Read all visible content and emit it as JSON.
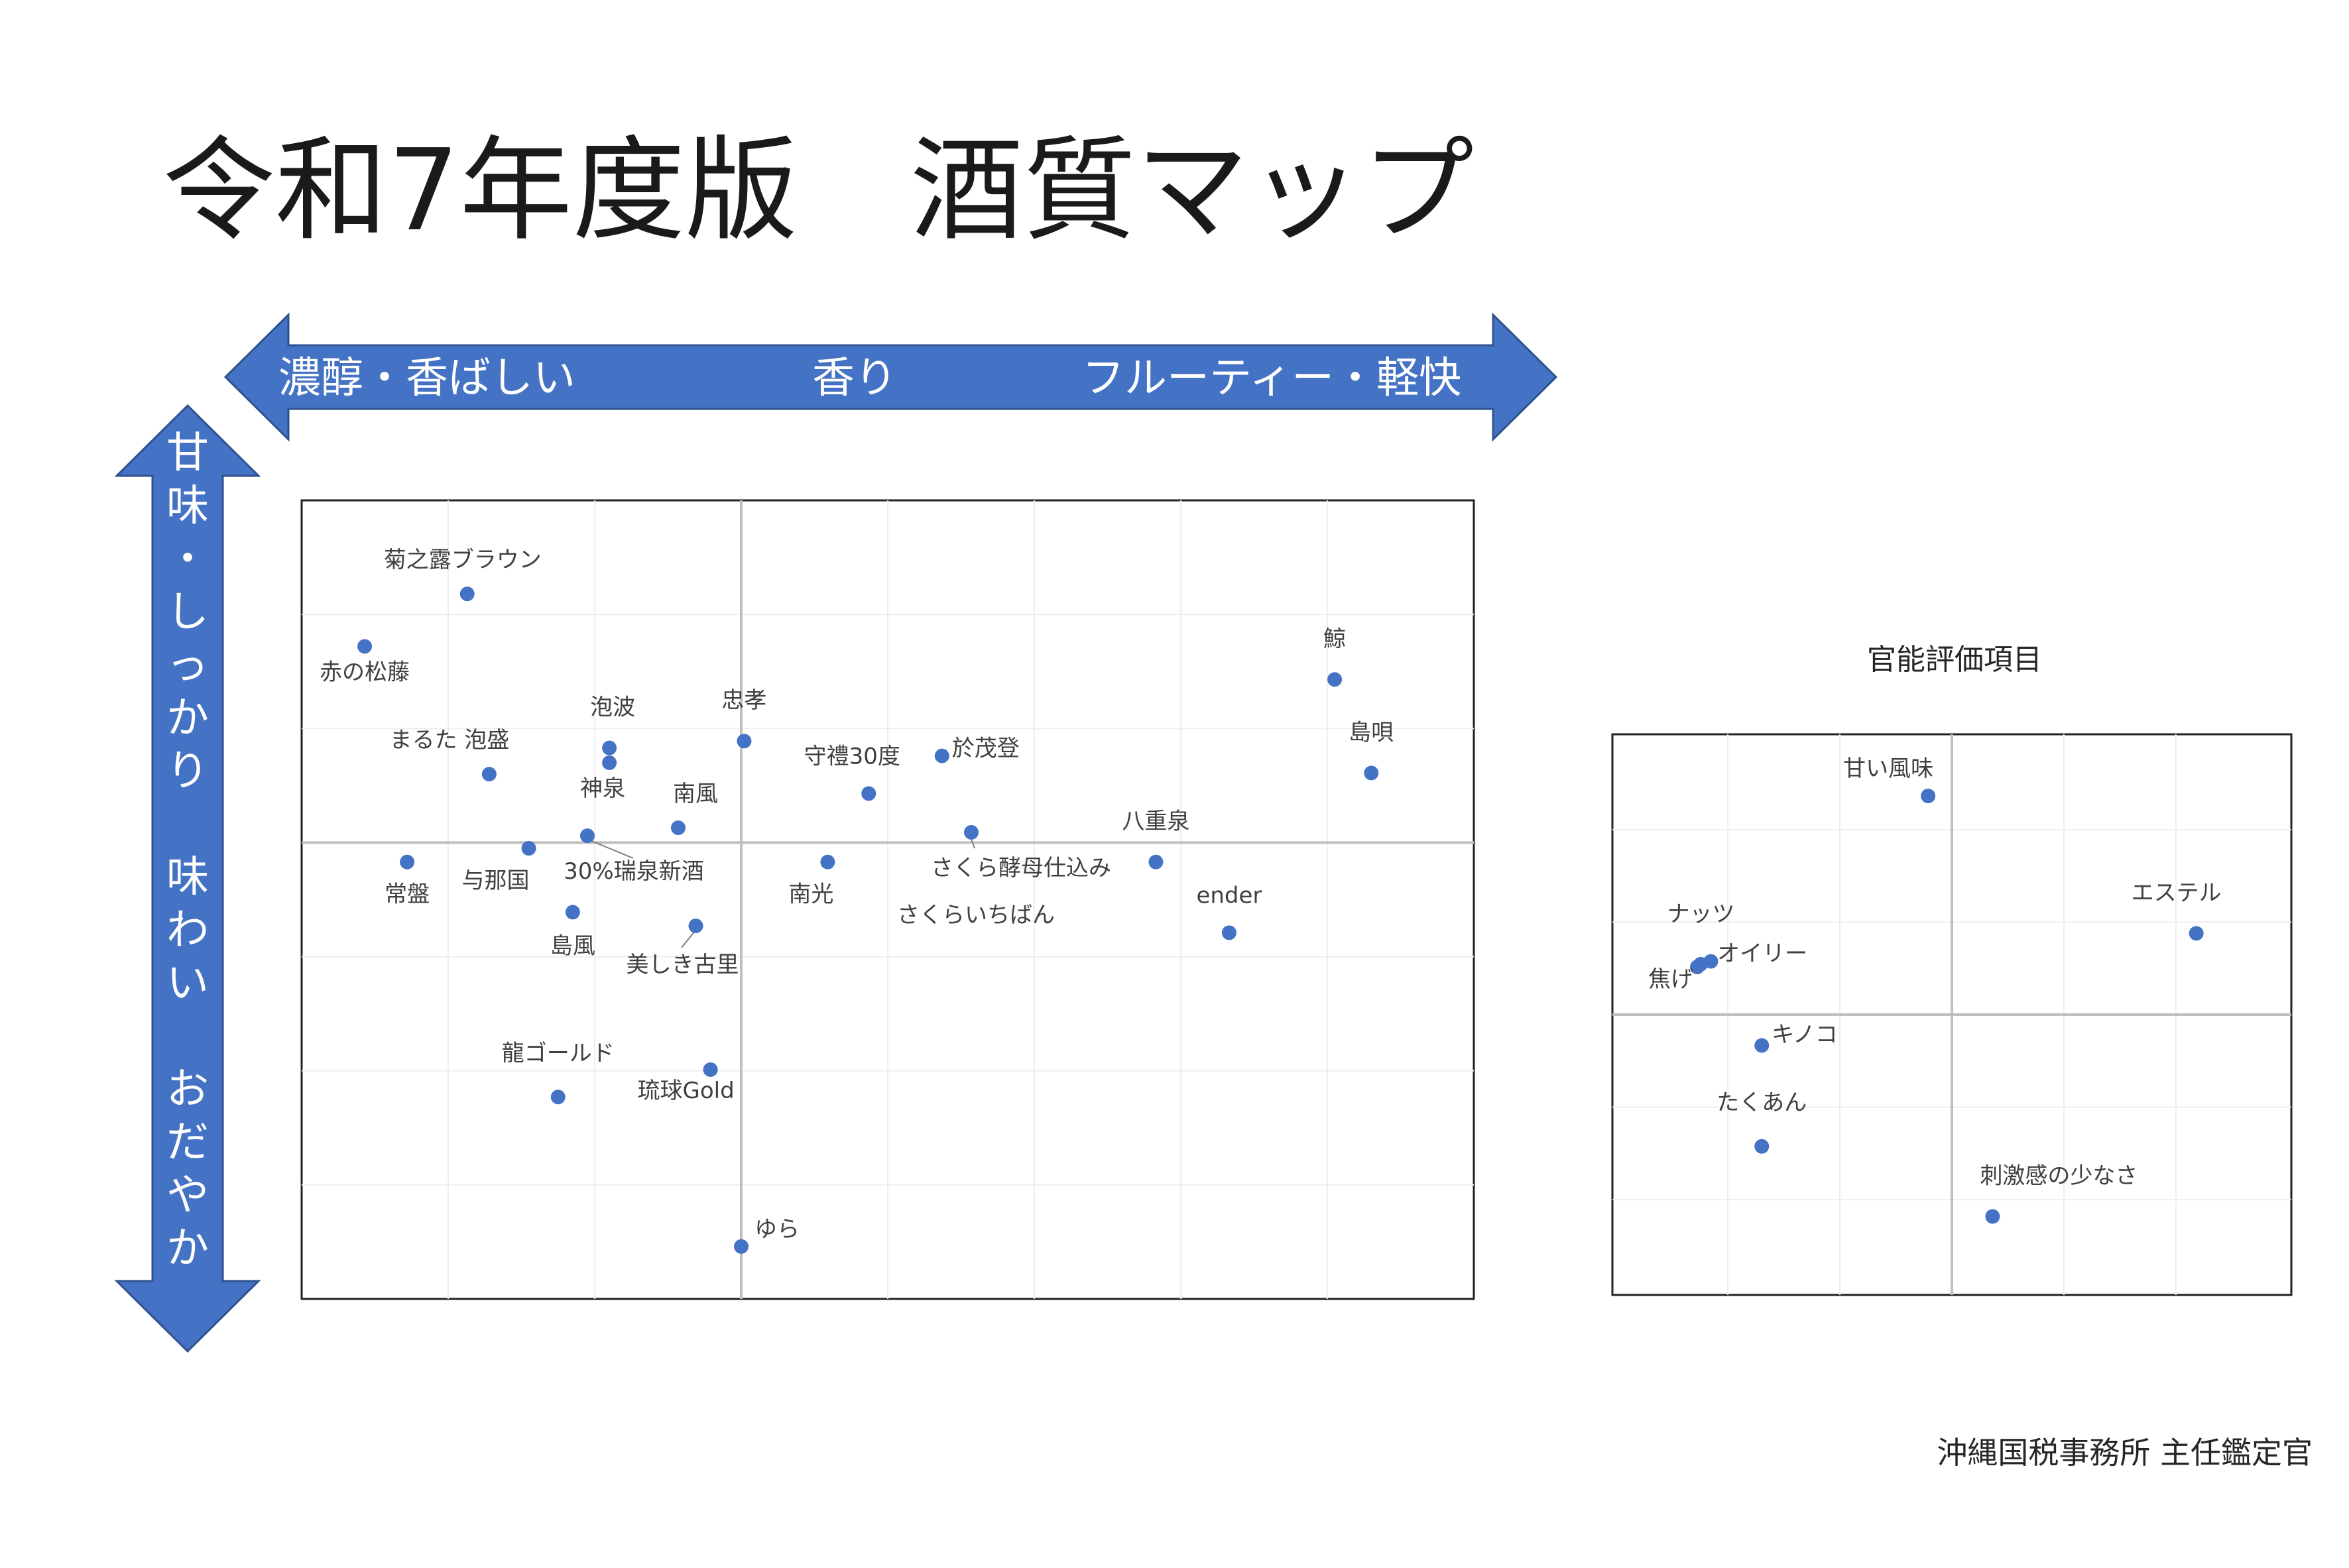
{
  "title": "令和7年度版　酒質マップ",
  "colors": {
    "accent": "#4472c4",
    "axis": "#bfbfbf",
    "grid": "#eeeeee"
  },
  "arrows": {
    "horizontal": {
      "left": "濃醇・香ばしい",
      "center": "香り",
      "right": "フルーティー・軽快"
    },
    "vertical": {
      "top": "甘味・しっかり",
      "bottom": "味わい　おだやか"
    }
  },
  "footer": "沖縄国税事務所 主任鑑定官",
  "chart_data": [
    {
      "type": "scatter",
      "title": "",
      "xlim": [
        -3,
        5
      ],
      "ylim": [
        -4,
        3
      ],
      "grid": true,
      "points": [
        {
          "label": "菊之露ブラウン",
          "x": -1.87,
          "y": 2.18
        },
        {
          "label": "赤の松藤",
          "x": -2.57,
          "y": 1.72
        },
        {
          "label": "泡波",
          "x": -0.9,
          "y": 0.83
        },
        {
          "label": "神泉",
          "x": -0.9,
          "y": 0.7
        },
        {
          "label": "まるた 泡盛",
          "x": -1.72,
          "y": 0.6
        },
        {
          "label": "忠孝",
          "x": 0.02,
          "y": 0.89
        },
        {
          "label": "守禮30度",
          "x": 0.87,
          "y": 0.43
        },
        {
          "label": "於茂登",
          "x": 1.37,
          "y": 0.76
        },
        {
          "label": "南風",
          "x": -0.43,
          "y": 0.13
        },
        {
          "label": "30%瑞泉新酒",
          "x": -1.05,
          "y": 0.06
        },
        {
          "label": "与那国",
          "x": -1.45,
          "y": -0.05
        },
        {
          "label": "常盤",
          "x": -2.28,
          "y": -0.17
        },
        {
          "label": "南光",
          "x": 0.59,
          "y": -0.17
        },
        {
          "label": "さくら酵母仕込み",
          "x": 1.57,
          "y": 0.09
        },
        {
          "label": "八重泉",
          "x": 2.83,
          "y": -0.17
        },
        {
          "label": "島風",
          "x": -1.15,
          "y": -0.61
        },
        {
          "label": "美しき古里",
          "x": -0.31,
          "y": -0.73
        },
        {
          "label": "ender",
          "x": 3.33,
          "y": -0.79
        },
        {
          "label": "龍ゴールド",
          "x": -1.25,
          "y": -2.23
        },
        {
          "label": "琉球Gold",
          "x": -0.21,
          "y": -1.99
        },
        {
          "label": "ゆら",
          "x": 0,
          "y": -3.54
        },
        {
          "label": "鯨",
          "x": 4.05,
          "y": 1.43
        },
        {
          "label": "島唄",
          "x": 4.3,
          "y": 0.61
        }
      ],
      "extra_labels": [
        "さくらいちばん"
      ]
    },
    {
      "type": "scatter",
      "title": "官能評価項目",
      "xlim": [
        -1,
        1
      ],
      "ylim": [
        -1,
        1
      ],
      "grid": true,
      "points": [
        {
          "label": "甘い風味",
          "x": -0.07,
          "y": 0.78
        },
        {
          "label": "エステル",
          "x": 0.72,
          "y": 0.29
        },
        {
          "label": "ナッツ",
          "x": -0.71,
          "y": 0.19
        },
        {
          "label": "オイリー",
          "x": -0.74,
          "y": 0.18
        },
        {
          "label": "焦げ",
          "x": -0.75,
          "y": 0.17
        },
        {
          "label": "キノコ",
          "x": -0.56,
          "y": -0.11
        },
        {
          "label": "たくあん",
          "x": -0.56,
          "y": -0.47
        },
        {
          "label": "刺激感の少なさ",
          "x": 0.12,
          "y": -0.72
        }
      ]
    }
  ]
}
